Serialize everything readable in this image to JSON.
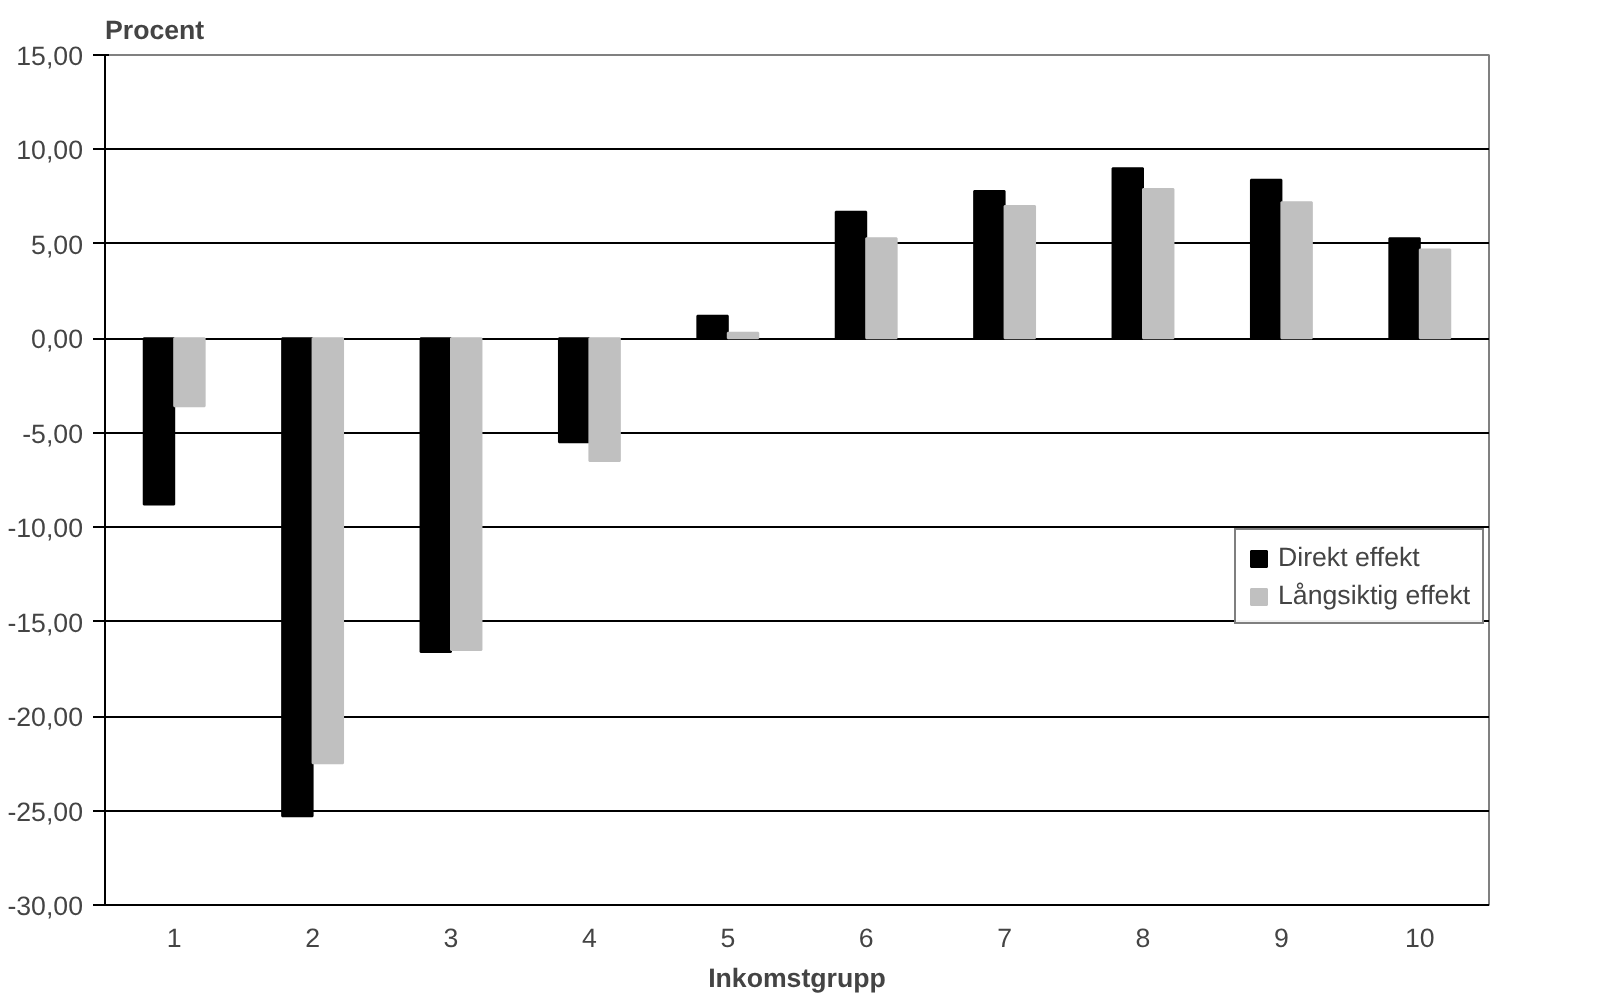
{
  "chart_data": {
    "type": "bar",
    "ylabel": "Procent",
    "xlabel": "Inkomstgrupp",
    "categories": [
      "1",
      "2",
      "3",
      "4",
      "5",
      "6",
      "7",
      "8",
      "9",
      "10"
    ],
    "series": [
      {
        "name": "Direkt effekt",
        "color": "#000000",
        "values": [
          -8.8,
          -25.3,
          -16.6,
          -5.5,
          1.2,
          6.7,
          7.8,
          9.0,
          8.4,
          5.3
        ]
      },
      {
        "name": "Långsiktig effekt",
        "color": "#c0c0c0",
        "values": [
          -3.6,
          -22.5,
          -16.5,
          -6.5,
          0.3,
          5.3,
          7.0,
          7.9,
          7.2,
          4.7
        ]
      }
    ],
    "ylim": [
      -30,
      15
    ],
    "yticks": [
      {
        "value": -30,
        "label": "-30,00"
      },
      {
        "value": -25,
        "label": "-25,00"
      },
      {
        "value": -20,
        "label": "-20,00"
      },
      {
        "value": -15,
        "label": "-15,00"
      },
      {
        "value": -10,
        "label": "-10,00"
      },
      {
        "value": -5,
        "label": "-5,00"
      },
      {
        "value": 0,
        "label": "0,00"
      },
      {
        "value": 5,
        "label": "5,00"
      },
      {
        "value": 10,
        "label": "10,00"
      },
      {
        "value": 15,
        "label": "15,00"
      }
    ],
    "grid": "y",
    "legend": "right"
  }
}
